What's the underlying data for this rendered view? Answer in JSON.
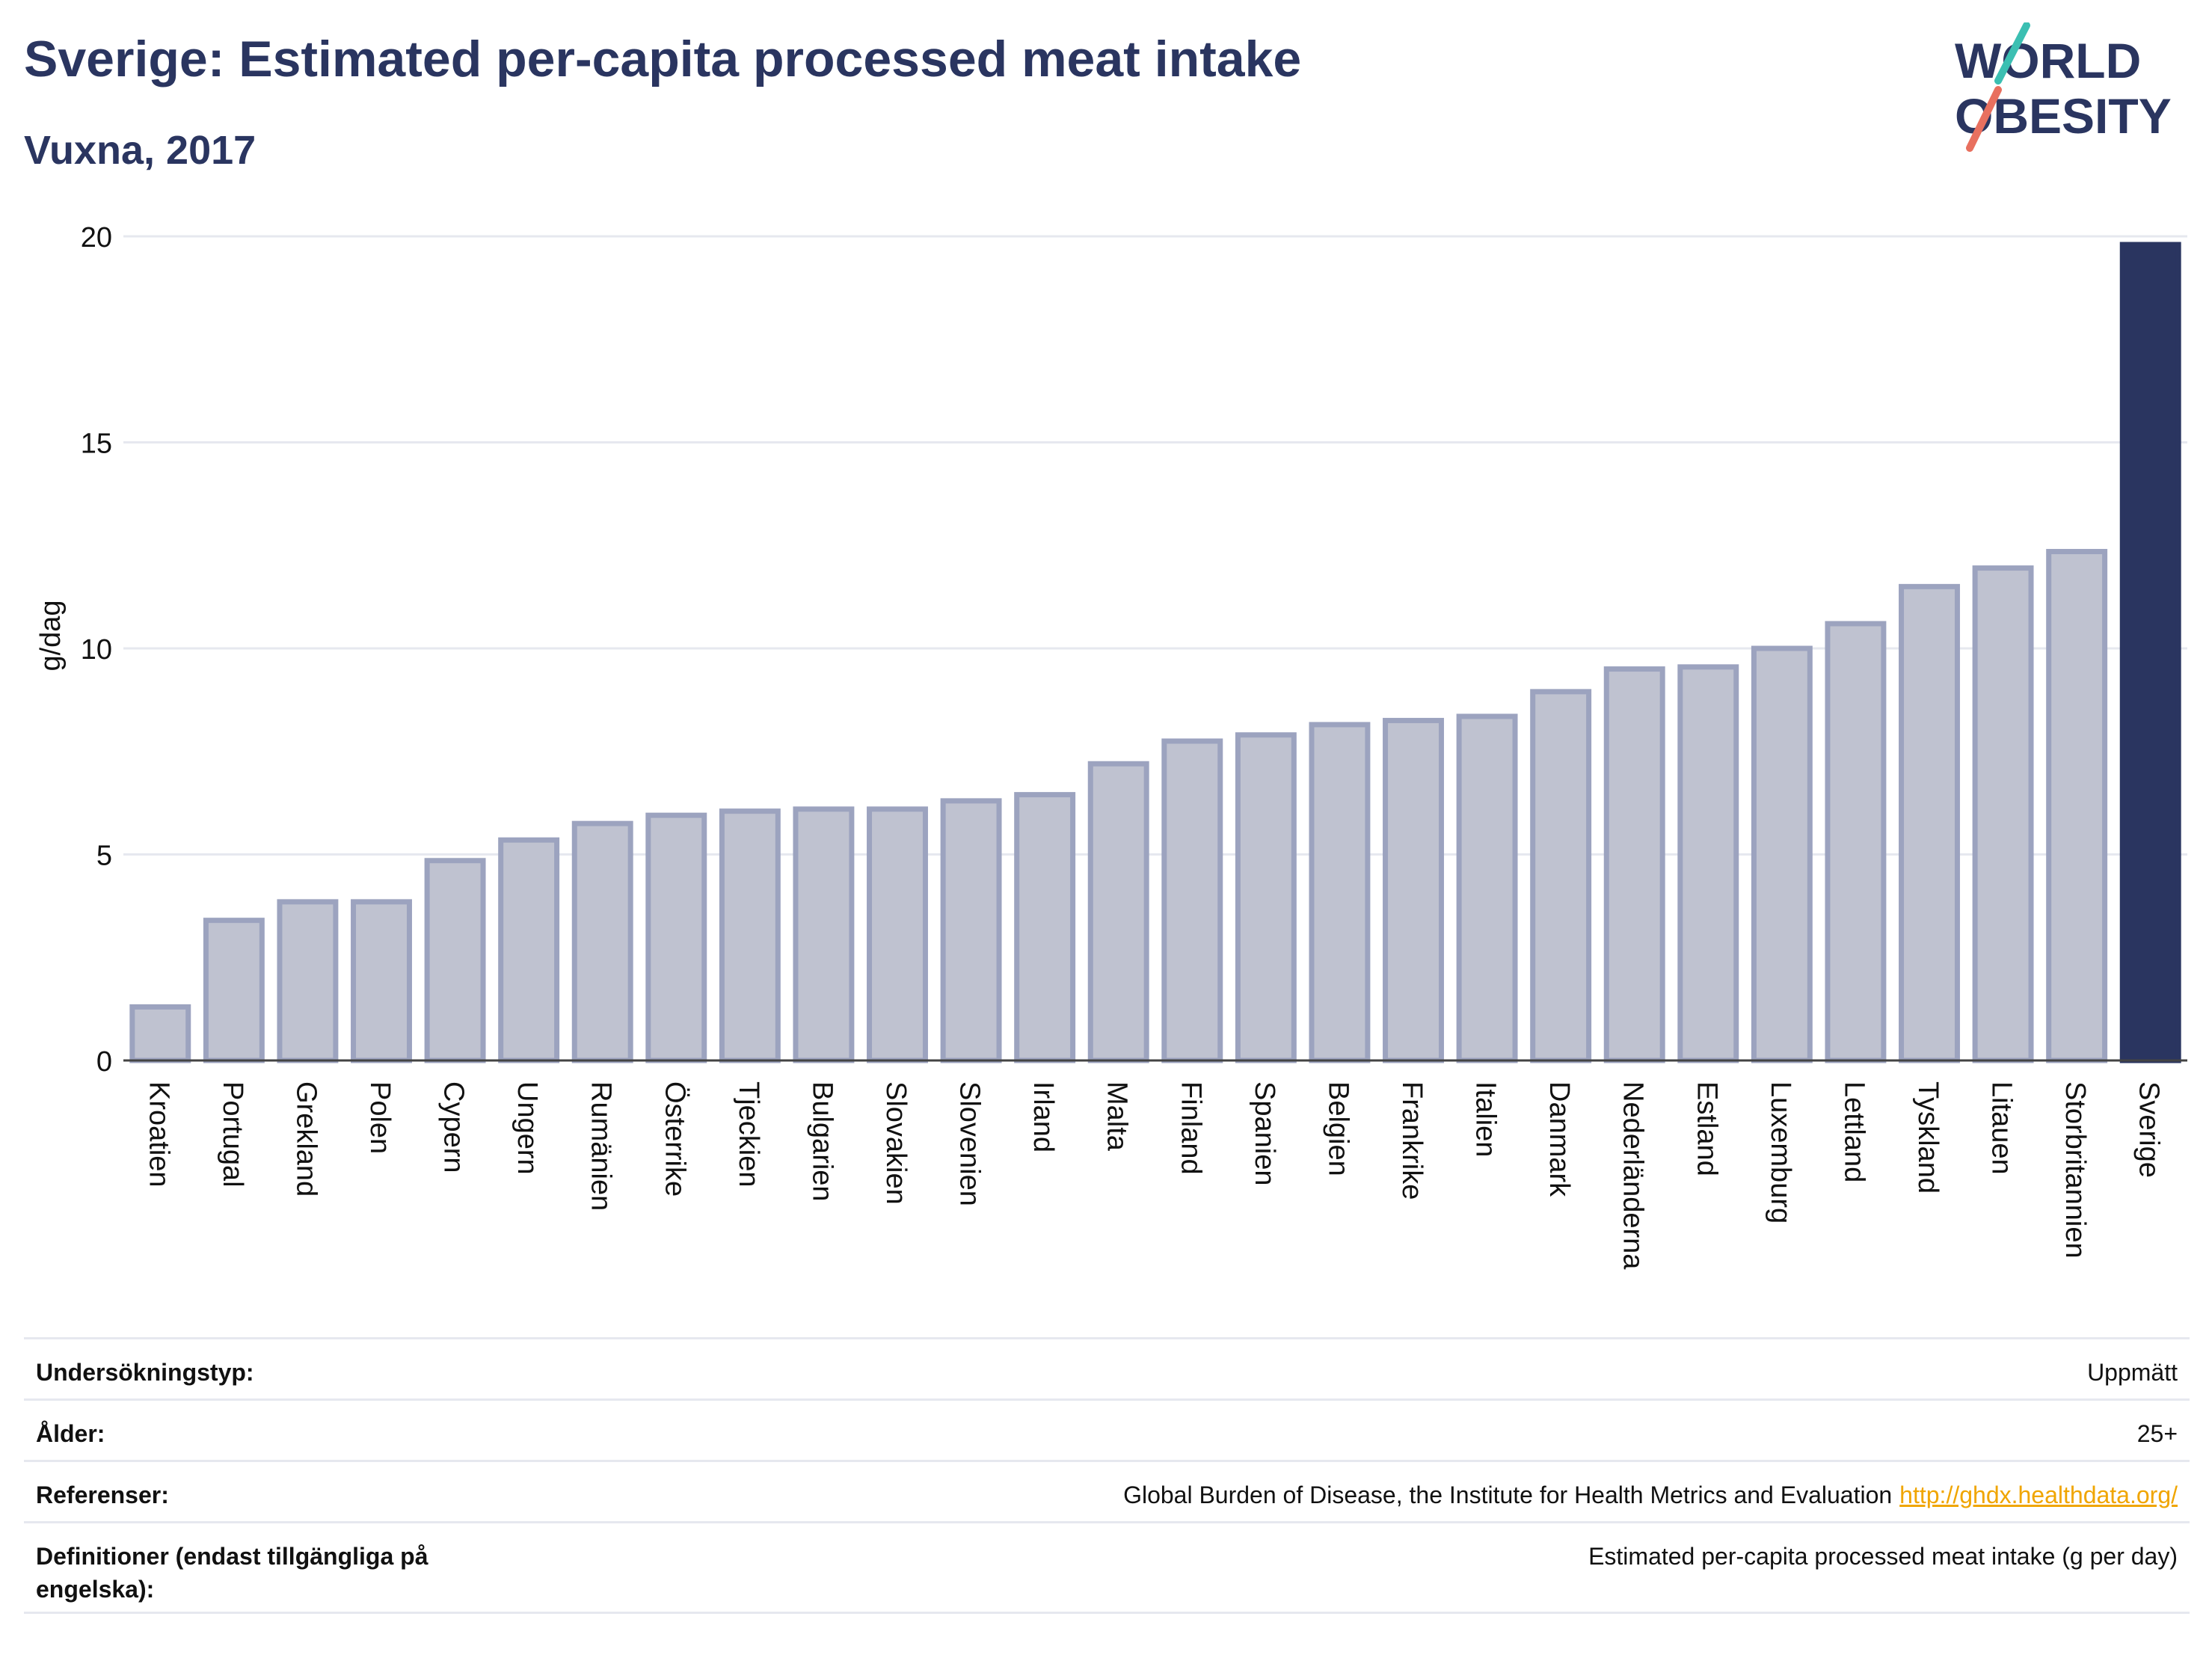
{
  "header": {
    "title": "Sverige: Estimated per-capita processed meat intake",
    "subtitle": "Vuxna, 2017"
  },
  "logo": {
    "line1": "WORLD",
    "line2": "OBESITY"
  },
  "colors": {
    "title": "#2a3560",
    "bar": "#bfc2d0",
    "bar_border": "#9ca3bf",
    "highlight": "#2a3560",
    "grid": "#e6e8ef",
    "link": "#f0a500"
  },
  "chart_data": {
    "type": "bar",
    "title": "Sverige: Estimated per-capita processed meat intake",
    "subtitle": "Vuxna, 2017",
    "ylabel": "g/dag",
    "xlabel": "",
    "ylim": [
      0,
      20
    ],
    "yticks": [
      0,
      5,
      10,
      15,
      20
    ],
    "grid": true,
    "highlight": "Sverige",
    "categories": [
      "Kroatien",
      "Portugal",
      "Grekland",
      "Polen",
      "Cypern",
      "Ungern",
      "Rumänien",
      "Österrike",
      "Tjeckien",
      "Bulgarien",
      "Slovakien",
      "Slovenien",
      "Irland",
      "Malta",
      "Finland",
      "Spanien",
      "Belgien",
      "Frankrike",
      "Italien",
      "Danmark",
      "Nederländerna",
      "Estland",
      "Luxemburg",
      "Lettland",
      "Tyskland",
      "Litauen",
      "Storbritannien",
      "Sverige"
    ],
    "values": [
      1.3,
      3.4,
      3.85,
      3.85,
      4.85,
      5.35,
      5.75,
      5.95,
      6.05,
      6.1,
      6.1,
      6.3,
      6.45,
      7.2,
      7.75,
      7.9,
      8.15,
      8.25,
      8.35,
      8.95,
      9.5,
      9.55,
      10.0,
      10.6,
      11.5,
      11.95,
      12.35,
      19.8
    ]
  },
  "meta": [
    {
      "key": "Undersökningstyp:",
      "value": "Uppmätt"
    },
    {
      "key": "Ålder:",
      "value": "25+"
    },
    {
      "key": "Referenser:",
      "value": "Global Burden of Disease, the Institute for Health Metrics and Evaluation",
      "link": "http://ghdx.healthdata.org/"
    },
    {
      "key": "Definitioner (endast tillgängliga på engelska):",
      "value": "Estimated per-capita processed meat intake (g per day)"
    }
  ]
}
